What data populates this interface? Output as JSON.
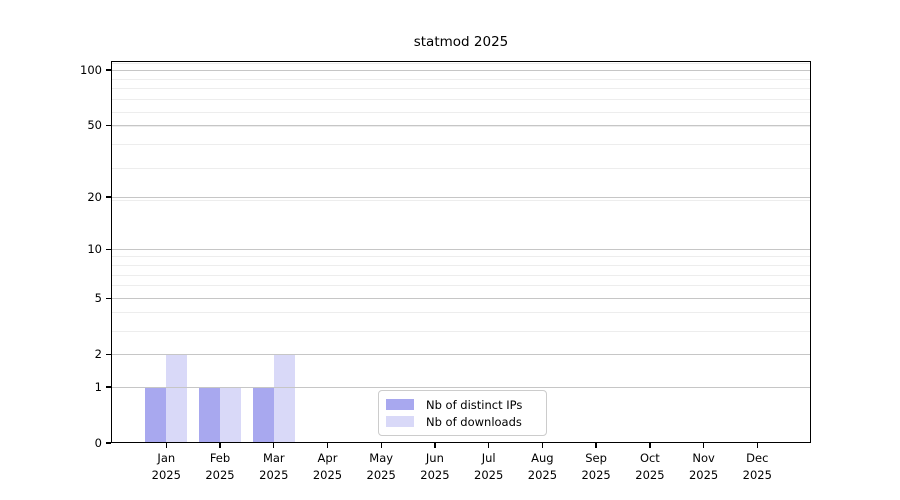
{
  "chart_data": {
    "type": "bar",
    "title": "statmod 2025",
    "categories": [
      "Jan 2025",
      "Feb 2025",
      "Mar 2025",
      "Apr 2025",
      "May 2025",
      "Jun 2025",
      "Jul 2025",
      "Aug 2025",
      "Sep 2025",
      "Oct 2025",
      "Nov 2025",
      "Dec 2025"
    ],
    "month_labels": [
      "Jan",
      "Feb",
      "Mar",
      "Apr",
      "May",
      "Jun",
      "Jul",
      "Aug",
      "Sep",
      "Oct",
      "Nov",
      "Dec"
    ],
    "year_label": "2025",
    "series": [
      {
        "name": "Nb of distinct IPs",
        "color": "#a8a8ef",
        "values": [
          1,
          1,
          1,
          0,
          0,
          0,
          0,
          0,
          0,
          0,
          0,
          0
        ]
      },
      {
        "name": "Nb of downloads",
        "color": "#d9d9f8",
        "values": [
          2,
          1,
          2,
          0,
          0,
          0,
          0,
          0,
          0,
          0,
          0,
          0
        ]
      }
    ],
    "xlabel": "",
    "ylabel": "",
    "y_scale": "log10(1+y)",
    "y_ticks": [
      0,
      1,
      2,
      5,
      10,
      20,
      50,
      100
    ],
    "y_minor_ticks": [
      3,
      4,
      6,
      7,
      8,
      9,
      19,
      29,
      39,
      49,
      59,
      69,
      79,
      89,
      99,
      109
    ],
    "ylim": [
      0,
      112
    ],
    "grid": "horizontal-above-bars",
    "legend_position": "bottom-center"
  },
  "colors": {
    "background": "#ffffff",
    "spine": "#000000",
    "text": "#000000",
    "grid_major": "#c6c6c6",
    "grid_minor": "#ededed",
    "legend_border": "#cccccc",
    "bar_distinct_ips": "#a8a8ef",
    "bar_downloads": "#d9d9f8"
  }
}
